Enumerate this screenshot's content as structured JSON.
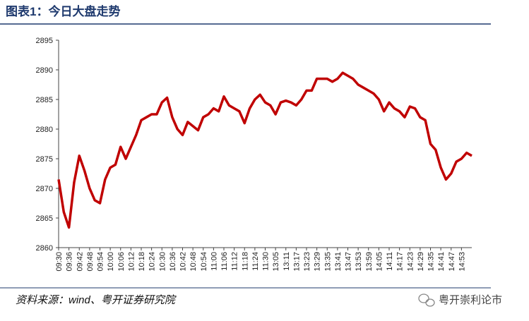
{
  "chart_data": {
    "type": "line",
    "title": "图表1：今日大盘走势",
    "categories": [
      "09:30",
      null,
      "09:36",
      null,
      "09:42",
      null,
      "09:48",
      null,
      "09:54",
      null,
      "10:00",
      null,
      "10:06",
      null,
      "10:12",
      null,
      "10:18",
      null,
      "10:24",
      null,
      "10:30",
      null,
      "10:36",
      null,
      "10:42",
      null,
      "10:48",
      null,
      "10:54",
      null,
      "11:00",
      null,
      "11:06",
      null,
      "11:12",
      null,
      "11:18",
      null,
      "11:24",
      null,
      "11:30",
      null,
      "13:05",
      null,
      "13:11",
      null,
      "13:17",
      null,
      "13:23",
      null,
      "13:29",
      null,
      "13:35",
      null,
      "13:41",
      null,
      "13:47",
      null,
      "13:53",
      null,
      "13:59",
      null,
      "14:05",
      null,
      "14:11",
      null,
      "14:17",
      null,
      "14:23",
      null,
      "14:29",
      null,
      "14:35",
      null,
      "14:41",
      null,
      "14:47",
      null,
      "14:53",
      null,
      null
    ],
    "values": [
      2871.5,
      2866,
      2863.4,
      2871,
      2875.5,
      2873,
      2870,
      2868,
      2867.5,
      2871.5,
      2873.5,
      2874,
      2877,
      2875,
      2877,
      2879,
      2881.5,
      2882,
      2882.5,
      2882.5,
      2884.5,
      2885.3,
      2882,
      2880,
      2879,
      2881.2,
      2880.5,
      2879.8,
      2882,
      2882.5,
      2883.5,
      2883,
      2885.5,
      2884,
      2883.5,
      2883,
      2881,
      2883.5,
      2885,
      2885.8,
      2884.5,
      2884,
      2882.5,
      2884.5,
      2884.8,
      2884.5,
      2884,
      2885,
      2886.5,
      2886.5,
      2888.5,
      2888.5,
      2888.5,
      2888,
      2888.5,
      2889.5,
      2889,
      2888.5,
      2887.5,
      2887,
      2886.5,
      2886,
      2885,
      2883,
      2884.5,
      2883.5,
      2883,
      2882,
      2883.8,
      2883.5,
      2882,
      2881.5,
      2877.5,
      2876.5,
      2873.5,
      2871.5,
      2872.5,
      2874.5,
      2875,
      2876,
      2875.5
    ],
    "color": "#c00000",
    "ylim": [
      2860,
      2895
    ],
    "yticks": [
      2860,
      2865,
      2870,
      2875,
      2880,
      2885,
      2890,
      2895
    ]
  },
  "source": "资料来源：wind、粤开证券研究院",
  "watermark": "粤开崇利论市"
}
